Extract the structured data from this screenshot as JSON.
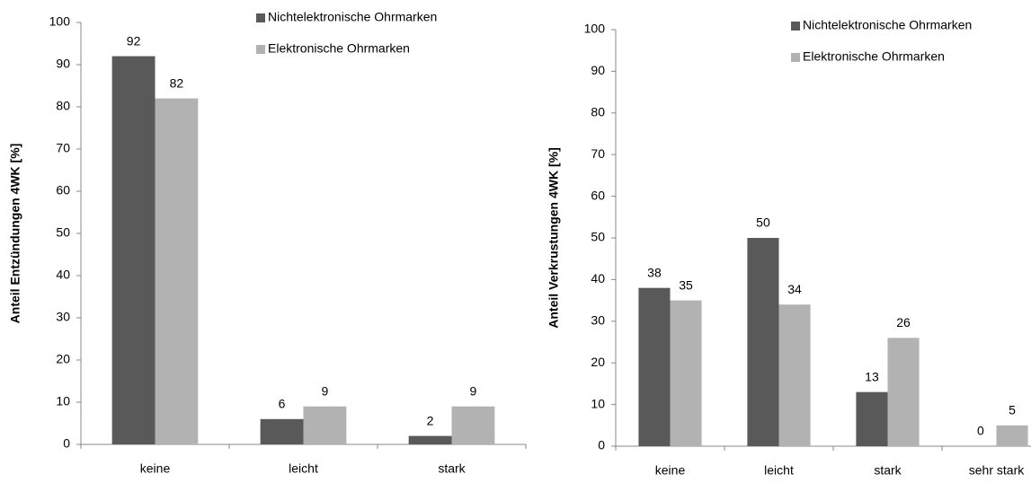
{
  "chart_data": [
    {
      "type": "bar",
      "ylabel": "Anteil Entzündungen 4WK [%]",
      "categories": [
        "keine",
        "leicht",
        "stark"
      ],
      "series": [
        {
          "name": "Nichtelektronische Ohrmarken",
          "color": "#595959",
          "values": [
            92,
            6,
            2
          ]
        },
        {
          "name": "Elektronische Ohrmarken",
          "color": "#b2b2b2",
          "values": [
            82,
            9,
            9
          ]
        }
      ],
      "ylim": [
        0,
        100
      ],
      "yticks": [
        0,
        10,
        20,
        30,
        40,
        50,
        60,
        70,
        80,
        90,
        100
      ],
      "legend": "top-right"
    },
    {
      "type": "bar",
      "ylabel": "Anteil Verkrustungen 4WK [%]",
      "categories": [
        "keine",
        "leicht",
        "stark",
        "sehr stark"
      ],
      "series": [
        {
          "name": "Nichtelektronische Ohrmarken",
          "color": "#595959",
          "values": [
            38,
            50,
            13,
            0
          ]
        },
        {
          "name": "Elektronische Ohrmarken",
          "color": "#b2b2b2",
          "values": [
            35,
            34,
            26,
            5
          ]
        }
      ],
      "ylim": [
        0,
        100
      ],
      "yticks": [
        0,
        10,
        20,
        30,
        40,
        50,
        60,
        70,
        80,
        90,
        100
      ],
      "legend": "top-right"
    }
  ]
}
